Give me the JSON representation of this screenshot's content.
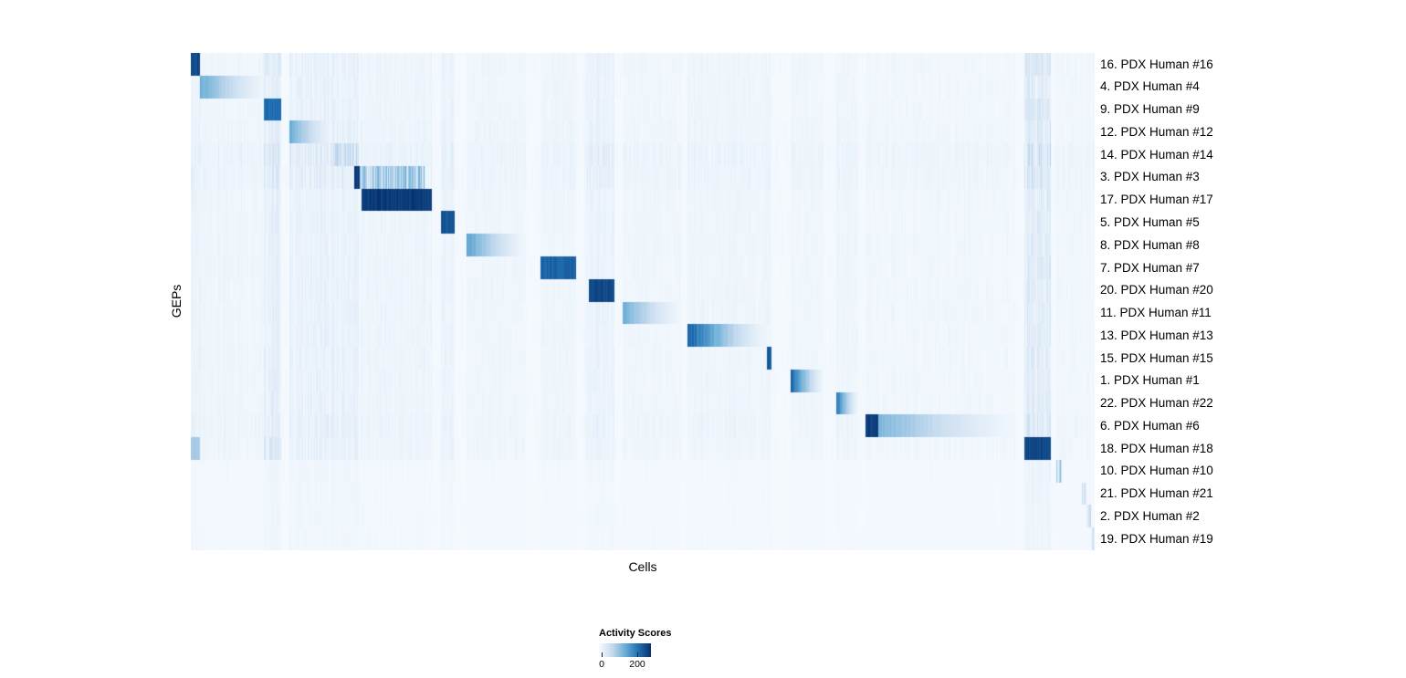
{
  "chart_data": {
    "type": "heatmap",
    "title": "",
    "xlabel": "Cells",
    "ylabel": "GEPs",
    "colormap": {
      "name": "Blues",
      "stops": [
        "#f7fbff",
        "#c6dbef",
        "#6baed6",
        "#2171b5",
        "#08306b"
      ]
    },
    "background_level": 0.015,
    "noise_level": 0.022,
    "legend": {
      "title": "Activity Scores",
      "tick_labels": [
        "0",
        "200"
      ],
      "tick_values": [
        0,
        200
      ]
    },
    "rows": [
      {
        "label": "16. PDX Human #16",
        "texture": 1.0,
        "marks": [
          {
            "range": [
              0.0,
              0.01
            ],
            "peak": 0.95,
            "style": "solid"
          },
          {
            "range": [
              0.08,
              0.099
            ],
            "peak": 0.16,
            "style": "streak"
          },
          {
            "range": [
              0.922,
              0.951
            ],
            "peak": 0.18,
            "style": "streak"
          }
        ]
      },
      {
        "label": "4. PDX Human #4",
        "texture": 1.0,
        "marks": [
          {
            "range": [
              0.01,
              0.084
            ],
            "peak": 0.5,
            "style": "fade"
          }
        ]
      },
      {
        "label": "9. PDX Human #9",
        "texture": 1.0,
        "marks": [
          {
            "range": [
              0.08,
              0.099
            ],
            "peak": 0.8,
            "style": "solid"
          },
          {
            "range": [
              0.922,
              0.951
            ],
            "peak": 0.2,
            "style": "streak"
          }
        ]
      },
      {
        "label": "12. PDX Human #12",
        "texture": 1.1,
        "marks": [
          {
            "range": [
              0.109,
              0.157
            ],
            "peak": 0.5,
            "style": "fade"
          }
        ]
      },
      {
        "label": "14. PDX Human #14",
        "texture": 1.6,
        "marks": [
          {
            "range": [
              0.157,
              0.185
            ],
            "peak": 0.3,
            "style": "streak"
          }
        ]
      },
      {
        "label": "3. PDX Human #3",
        "texture": 1.4,
        "marks": [
          {
            "range": [
              0.18,
              0.186
            ],
            "peak": 1.0,
            "style": "solid"
          },
          {
            "range": [
              0.186,
              0.258
            ],
            "peak": 0.5,
            "style": "streak"
          }
        ]
      },
      {
        "label": "17. PDX Human #17",
        "texture": 1.0,
        "marks": [
          {
            "range": [
              0.188,
              0.266
            ],
            "peak": 1.0,
            "style": "solid"
          }
        ]
      },
      {
        "label": "5. PDX Human #5",
        "texture": 1.0,
        "marks": [
          {
            "range": [
              0.276,
              0.291
            ],
            "peak": 0.9,
            "style": "solid"
          }
        ]
      },
      {
        "label": "8. PDX Human #8",
        "texture": 1.0,
        "marks": [
          {
            "range": [
              0.305,
              0.37
            ],
            "peak": 0.55,
            "style": "fade"
          }
        ]
      },
      {
        "label": "7. PDX Human #7",
        "texture": 1.0,
        "marks": [
          {
            "range": [
              0.386,
              0.426
            ],
            "peak": 0.85,
            "style": "solid"
          }
        ]
      },
      {
        "label": "20. PDX Human #20",
        "texture": 1.0,
        "marks": [
          {
            "range": [
              0.44,
              0.468
            ],
            "peak": 0.95,
            "style": "solid"
          }
        ]
      },
      {
        "label": "11. PDX Human #11",
        "texture": 1.0,
        "marks": [
          {
            "range": [
              0.477,
              0.542
            ],
            "peak": 0.5,
            "style": "fade"
          }
        ]
      },
      {
        "label": "13. PDX Human #13",
        "texture": 1.0,
        "marks": [
          {
            "range": [
              0.549,
              0.637
            ],
            "peak": 0.85,
            "style": "fade"
          }
        ]
      },
      {
        "label": "15. PDX Human #15",
        "texture": 1.0,
        "marks": [
          {
            "range": [
              0.637,
              0.642
            ],
            "peak": 0.9,
            "style": "solid"
          }
        ]
      },
      {
        "label": "1. PDX Human #1",
        "texture": 1.0,
        "marks": [
          {
            "range": [
              0.663,
              0.7
            ],
            "peak": 0.85,
            "style": "fade"
          }
        ]
      },
      {
        "label": "22. PDX Human #22",
        "texture": 1.0,
        "marks": [
          {
            "range": [
              0.714,
              0.738
            ],
            "peak": 0.75,
            "style": "fade"
          }
        ]
      },
      {
        "label": "6. PDX Human #6",
        "texture": 1.2,
        "marks": [
          {
            "range": [
              0.746,
              0.76
            ],
            "peak": 1.0,
            "style": "solid"
          },
          {
            "range": [
              0.76,
              0.912
            ],
            "peak": 0.45,
            "style": "fade"
          }
        ]
      },
      {
        "label": "18. PDX Human #18",
        "texture": 1.0,
        "marks": [
          {
            "range": [
              0.922,
              0.951
            ],
            "peak": 0.95,
            "style": "solid"
          },
          {
            "range": [
              0.0,
              0.01
            ],
            "peak": 0.35,
            "style": "solid"
          },
          {
            "range": [
              0.08,
              0.099
            ],
            "peak": 0.22,
            "style": "streak"
          }
        ]
      },
      {
        "label": "10. PDX Human #10",
        "texture": 0.4,
        "marks": [
          {
            "range": [
              0.957,
              0.963
            ],
            "peak": 0.45,
            "style": "streak"
          }
        ]
      },
      {
        "label": "21. PDX Human #21",
        "texture": 0.35,
        "marks": [
          {
            "range": [
              0.985,
              0.99
            ],
            "peak": 0.25,
            "style": "streak"
          }
        ]
      },
      {
        "label": "2. PDX Human #2",
        "texture": 0.35,
        "marks": [
          {
            "range": [
              0.99,
              0.995
            ],
            "peak": 0.3,
            "style": "streak"
          }
        ]
      },
      {
        "label": "19. PDX Human #19",
        "texture": 0.35,
        "marks": [
          {
            "range": [
              0.995,
              1.0
            ],
            "peak": 0.3,
            "style": "streak"
          }
        ]
      }
    ],
    "stripe_bands": [
      {
        "range": [
          0.0,
          0.01
        ],
        "base": 0.1
      },
      {
        "range": [
          0.01,
          0.084
        ],
        "base": 0.05
      },
      {
        "range": [
          0.08,
          0.1
        ],
        "base": 0.15
      },
      {
        "range": [
          0.109,
          0.185
        ],
        "base": 0.11
      },
      {
        "range": [
          0.186,
          0.266
        ],
        "base": 0.06
      },
      {
        "range": [
          0.276,
          0.291
        ],
        "base": 0.09
      },
      {
        "range": [
          0.305,
          0.37
        ],
        "base": 0.04
      },
      {
        "range": [
          0.386,
          0.426
        ],
        "base": 0.05
      },
      {
        "range": [
          0.435,
          0.468
        ],
        "base": 0.09
      },
      {
        "range": [
          0.477,
          0.542
        ],
        "base": 0.04
      },
      {
        "range": [
          0.549,
          0.642
        ],
        "base": 0.05
      },
      {
        "range": [
          0.663,
          0.7
        ],
        "base": 0.04
      },
      {
        "range": [
          0.714,
          0.738
        ],
        "base": 0.05
      },
      {
        "range": [
          0.746,
          0.912
        ],
        "base": 0.035
      },
      {
        "range": [
          0.922,
          0.951
        ],
        "base": 0.18
      },
      {
        "range": [
          0.957,
          1.0
        ],
        "base": 0.035
      }
    ]
  }
}
